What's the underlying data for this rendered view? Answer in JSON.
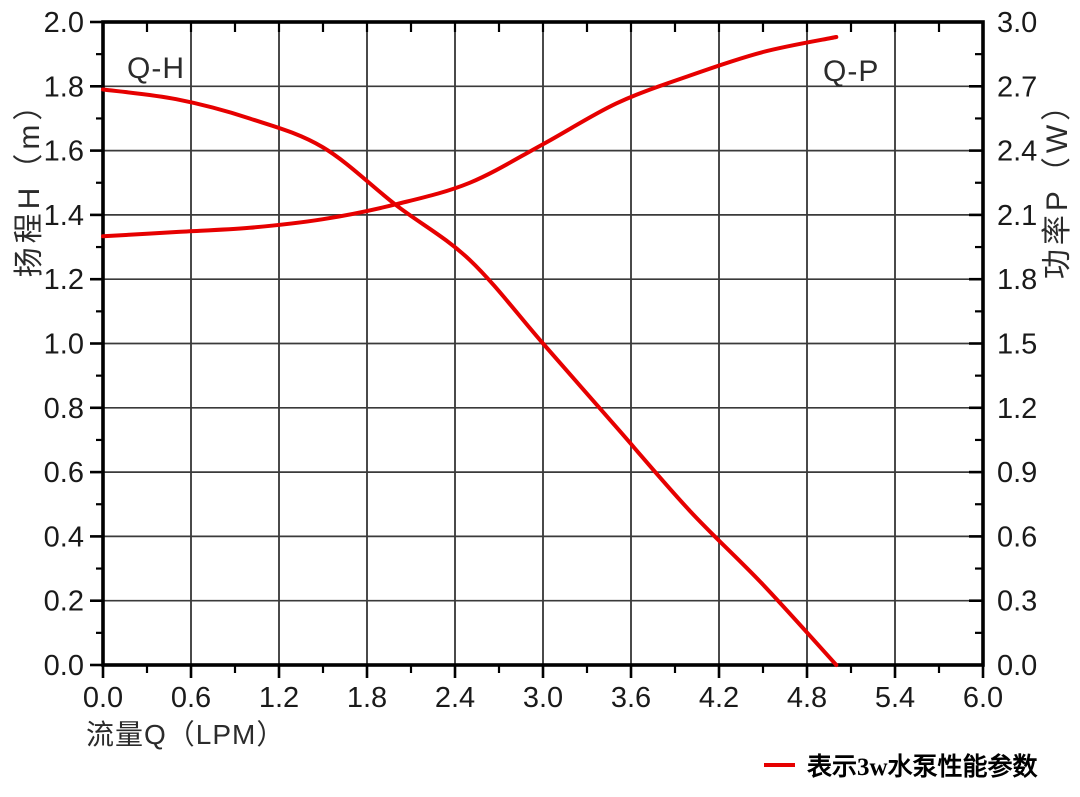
{
  "chart_data": {
    "type": "line",
    "title": "",
    "grid": true,
    "colors": {
      "series": "#e60000",
      "axis": "#000000",
      "grid_vertical": "#4a4a4a",
      "grid_horizontal": "#3a3a3a",
      "tick_text": "#1a1a1a"
    },
    "x": {
      "label": "流量Q（LPM）",
      "min": 0,
      "max": 6,
      "major_step": 0.6,
      "minor_step": 0.3,
      "tick_labels": [
        "0.0",
        "0.6",
        "1.2",
        "1.8",
        "2.4",
        "3.0",
        "3.6",
        "4.2",
        "4.8",
        "5.4",
        "6.0"
      ]
    },
    "y_left": {
      "label": "扬程H（m）",
      "min": 0,
      "max": 2,
      "major_step": 0.2,
      "minor_step": 0.1,
      "tick_labels": [
        "2.0",
        "1.8",
        "1.6",
        "1.4",
        "1.2",
        "1.0",
        "0.8",
        "0.6",
        "0.4",
        "0.2",
        "0.0"
      ]
    },
    "y_right": {
      "label": "功率P（W）",
      "min": 0,
      "max": 3,
      "major_step": 0.3,
      "minor_step": 0.15,
      "tick_labels": [
        "3.0",
        "2.7",
        "2.4",
        "2.1",
        "1.8",
        "1.5",
        "1.2",
        "0.9",
        "0.6",
        "0.3",
        "0.0"
      ]
    },
    "series": [
      {
        "name": "Q-H",
        "axis": "left",
        "x": [
          0.0,
          0.5,
          1.0,
          1.5,
          2.0,
          2.5,
          3.0,
          3.5,
          4.0,
          4.5,
          5.0
        ],
        "y": [
          1.79,
          1.76,
          1.7,
          1.61,
          1.43,
          1.26,
          1.0,
          0.74,
          0.48,
          0.25,
          0.0
        ]
      },
      {
        "name": "Q-P",
        "axis": "right",
        "x": [
          0.0,
          0.5,
          1.0,
          1.5,
          2.0,
          2.5,
          3.0,
          3.5,
          4.0,
          4.5,
          5.0
        ],
        "y": [
          2.0,
          2.02,
          2.04,
          2.08,
          2.15,
          2.25,
          2.43,
          2.62,
          2.75,
          2.86,
          2.93
        ]
      }
    ],
    "annotations": [
      {
        "text": "Q-H"
      },
      {
        "text": "Q-P"
      }
    ],
    "legend": {
      "position": "bottom-right",
      "marker": "line",
      "color": "#e60000",
      "label": "表示3w水泵性能参数"
    }
  }
}
